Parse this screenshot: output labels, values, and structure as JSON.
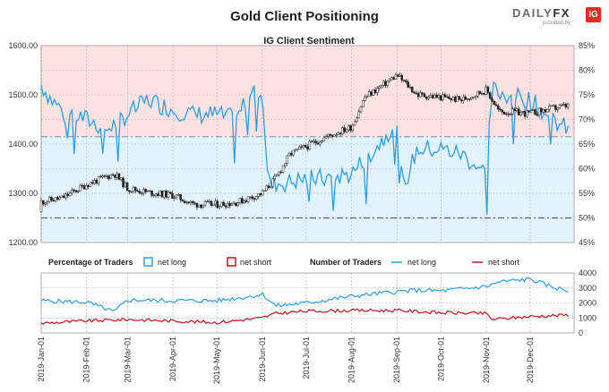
{
  "title": "Gold Client Positioning",
  "brand": {
    "name_a": "DAILY",
    "name_b": "FX",
    "sub": "provided by",
    "badge": "IG"
  },
  "colors": {
    "net_long": "#2b9ee3",
    "net_short": "#c1121f",
    "ohlc": "#222222",
    "zone_short": "#fde2e2",
    "zone_long": "#e3f3fd",
    "grid": "#a8a8a8"
  },
  "chart_data": [
    {
      "type": "candlestick+line",
      "title": "IG Client Sentiment",
      "y_left": {
        "ticks": [
          "1200.00",
          "1300.00",
          "1400.00",
          "1500.00",
          "1600.00"
        ],
        "ylim": [
          1200,
          1600
        ]
      },
      "y_right": {
        "ticks": [
          "45%",
          "50%",
          "55%",
          "60%",
          "65%",
          "70%",
          "75%",
          "80%",
          "85%"
        ],
        "ylim": [
          45,
          85
        ]
      },
      "reference_lines": [
        50,
        66.5
      ],
      "price_series": {
        "x": [
          "2019-01-01",
          "2019-01-15",
          "2019-02-01",
          "2019-02-20",
          "2019-03-01",
          "2019-03-15",
          "2019-04-01",
          "2019-04-15",
          "2019-05-01",
          "2019-05-15",
          "2019-06-01",
          "2019-06-10",
          "2019-06-20",
          "2019-07-01",
          "2019-07-15",
          "2019-08-01",
          "2019-08-10",
          "2019-08-20",
          "2019-09-01",
          "2019-09-15",
          "2019-10-01",
          "2019-10-15",
          "2019-11-01",
          "2019-11-10",
          "2019-11-20",
          "2019-12-01",
          "2019-12-15",
          "2019-12-27"
        ],
        "close": [
          1283,
          1290,
          1318,
          1340,
          1310,
          1302,
          1296,
          1278,
          1277,
          1282,
          1300,
          1330,
          1380,
          1395,
          1415,
          1435,
          1495,
          1515,
          1540,
          1500,
          1495,
          1490,
          1510,
          1465,
          1465,
          1462,
          1472,
          1478
        ]
      },
      "long_pct_series": {
        "x": [
          "2019-01-01",
          "2019-01-08",
          "2019-01-15",
          "2019-02-01",
          "2019-02-15",
          "2019-03-01",
          "2019-03-15",
          "2019-04-01",
          "2019-04-15",
          "2019-05-01",
          "2019-05-15",
          "2019-05-25",
          "2019-06-01",
          "2019-06-05",
          "2019-06-15",
          "2019-07-01",
          "2019-07-15",
          "2019-08-01",
          "2019-08-10",
          "2019-08-20",
          "2019-09-01",
          "2019-09-05",
          "2019-09-15",
          "2019-10-01",
          "2019-10-15",
          "2019-11-01",
          "2019-11-05",
          "2019-11-15",
          "2019-12-01",
          "2019-12-15",
          "2019-12-27"
        ],
        "values": [
          77,
          74,
          72,
          70,
          68,
          71,
          74,
          72,
          71,
          71,
          70,
          77,
          76,
          57,
          57,
          58,
          58,
          59,
          62,
          65,
          70,
          56,
          64,
          64,
          63,
          59,
          76,
          75,
          74,
          70,
          68
        ]
      },
      "series_labels": [
        "net long",
        "net short"
      ]
    },
    {
      "type": "line",
      "left_legend": {
        "title": "Percentage of Traders",
        "items": [
          "net long",
          "net short"
        ]
      },
      "right_legend": {
        "title": "Number of Traders",
        "items": [
          "net long",
          "net short"
        ]
      },
      "y_right": {
        "ticks": [
          "0",
          "1000",
          "2000",
          "3000",
          "4000"
        ],
        "ylim": [
          0,
          4000
        ]
      },
      "x_ticks": [
        "2019-Jan-01",
        "2019-Feb-01",
        "2019-Mar-01",
        "2019-Apr-01",
        "2019-May-01",
        "2019-Jun-01",
        "2019-Jul-01",
        "2019-Aug-01",
        "2019-Sep-01",
        "2019-Oct-01",
        "2019-Nov-01",
        "2019-Dec-01"
      ],
      "x_tick_dates": [
        "2019-01-01",
        "2019-02-01",
        "2019-03-01",
        "2019-04-01",
        "2019-05-01",
        "2019-06-01",
        "2019-07-01",
        "2019-08-01",
        "2019-09-01",
        "2019-10-01",
        "2019-11-01",
        "2019-12-01"
      ],
      "series": [
        {
          "name": "net long",
          "x": [
            "2019-01-01",
            "2019-02-01",
            "2019-02-20",
            "2019-03-01",
            "2019-04-01",
            "2019-05-01",
            "2019-05-25",
            "2019-06-01",
            "2019-06-10",
            "2019-07-01",
            "2019-08-01",
            "2019-09-01",
            "2019-09-15",
            "2019-10-01",
            "2019-11-01",
            "2019-11-10",
            "2019-12-01",
            "2019-12-15",
            "2019-12-27"
          ],
          "values": [
            2150,
            2050,
            1400,
            2200,
            2150,
            2150,
            2450,
            2600,
            1800,
            2000,
            2450,
            2750,
            2850,
            2800,
            3100,
            3400,
            3600,
            3100,
            2800
          ]
        },
        {
          "name": "net short",
          "x": [
            "2019-01-01",
            "2019-02-01",
            "2019-03-01",
            "2019-04-01",
            "2019-05-01",
            "2019-06-01",
            "2019-06-10",
            "2019-07-01",
            "2019-08-01",
            "2019-09-01",
            "2019-10-01",
            "2019-11-01",
            "2019-11-05",
            "2019-12-01",
            "2019-12-27"
          ],
          "values": [
            650,
            800,
            900,
            800,
            700,
            1000,
            1300,
            1450,
            1500,
            1500,
            1350,
            1300,
            900,
            1100,
            1200
          ]
        }
      ]
    }
  ]
}
